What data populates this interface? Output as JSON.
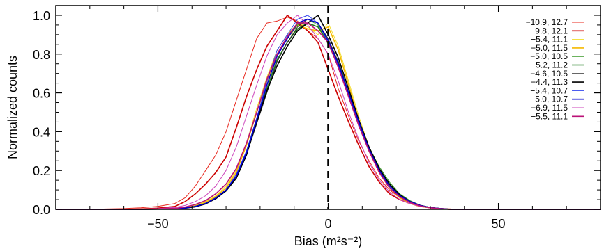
{
  "chart_data": {
    "type": "line",
    "xlabel": "Bias (m²s⁻²)",
    "ylabel": "Normalized counts",
    "xlim": [
      -80,
      80
    ],
    "ylim": [
      0,
      1.05
    ],
    "x_ticks": [
      -50,
      0,
      50
    ],
    "x_tick_labels": [
      "−50",
      "0",
      "50"
    ],
    "y_ticks": [
      0.0,
      0.2,
      0.4,
      0.6,
      0.8,
      1.0
    ],
    "y_tick_labels": [
      "0.0",
      "0.2",
      "0.4",
      "0.6",
      "0.8",
      "1.0"
    ],
    "reference_line": {
      "x": 0,
      "style": "dashed",
      "color": "#000000"
    },
    "legend_position": "top-right",
    "x": [
      -80,
      -75,
      -70,
      -65,
      -60,
      -55,
      -50,
      -45,
      -42,
      -39,
      -36,
      -33,
      -30,
      -27,
      -24,
      -21,
      -18,
      -15,
      -12,
      -9,
      -6,
      -3,
      0,
      3,
      6,
      9,
      12,
      15,
      18,
      21,
      24,
      27,
      30,
      33,
      36,
      40,
      45,
      50,
      60,
      70,
      80
    ],
    "series": [
      {
        "name": "−10.9,  12.7",
        "color": "#e8281e",
        "width": 1.0,
        "values": [
          0,
          0,
          0,
          0.002,
          0.004,
          0.008,
          0.015,
          0.03,
          0.06,
          0.12,
          0.2,
          0.28,
          0.4,
          0.56,
          0.72,
          0.88,
          0.96,
          0.97,
          0.99,
          0.97,
          0.92,
          0.88,
          0.8,
          0.62,
          0.48,
          0.35,
          0.25,
          0.16,
          0.1,
          0.06,
          0.04,
          0.02,
          0.01,
          0.005,
          0.002,
          0,
          0,
          0,
          0,
          0,
          0
        ]
      },
      {
        "name": "−9.8,  12.1",
        "color": "#cc0000",
        "width": 1.6,
        "values": [
          0,
          0,
          0,
          0,
          0,
          0.002,
          0.006,
          0.015,
          0.04,
          0.08,
          0.13,
          0.19,
          0.27,
          0.42,
          0.58,
          0.72,
          0.84,
          0.92,
          1.0,
          0.96,
          0.92,
          0.86,
          0.72,
          0.58,
          0.45,
          0.33,
          0.22,
          0.14,
          0.08,
          0.05,
          0.03,
          0.015,
          0.008,
          0.003,
          0,
          0,
          0,
          0,
          0,
          0,
          0
        ]
      },
      {
        "name": "−5.4,  11.1",
        "color": "#f2dd2a",
        "width": 1.0,
        "values": [
          0,
          0,
          0,
          0,
          0,
          0,
          0.002,
          0.005,
          0.01,
          0.02,
          0.04,
          0.07,
          0.12,
          0.2,
          0.34,
          0.52,
          0.68,
          0.82,
          0.9,
          0.96,
          0.94,
          0.9,
          0.96,
          0.84,
          0.66,
          0.48,
          0.32,
          0.2,
          0.12,
          0.07,
          0.04,
          0.02,
          0.01,
          0.004,
          0,
          0,
          0,
          0,
          0,
          0,
          0
        ]
      },
      {
        "name": "−5.0,  11.5",
        "color": "#f5b800",
        "width": 1.6,
        "values": [
          0,
          0,
          0,
          0,
          0,
          0,
          0.002,
          0.004,
          0.008,
          0.018,
          0.035,
          0.065,
          0.11,
          0.19,
          0.33,
          0.5,
          0.66,
          0.8,
          0.88,
          0.95,
          0.93,
          0.92,
          0.94,
          0.82,
          0.64,
          0.46,
          0.3,
          0.19,
          0.11,
          0.06,
          0.03,
          0.015,
          0.008,
          0.003,
          0,
          0,
          0,
          0,
          0,
          0,
          0
        ]
      },
      {
        "name": "−5.0,  10.5",
        "color": "#3a9a2a",
        "width": 1.0,
        "values": [
          0,
          0,
          0,
          0,
          0,
          0,
          0.001,
          0.003,
          0.007,
          0.015,
          0.03,
          0.06,
          0.1,
          0.17,
          0.3,
          0.47,
          0.64,
          0.79,
          0.88,
          0.95,
          0.98,
          0.95,
          0.85,
          0.74,
          0.59,
          0.44,
          0.32,
          0.22,
          0.14,
          0.08,
          0.045,
          0.022,
          0.01,
          0.004,
          0,
          0,
          0,
          0,
          0,
          0,
          0
        ]
      },
      {
        "name": "−5.2,  11.2",
        "color": "#1f7a1f",
        "width": 1.6,
        "values": [
          0,
          0,
          0,
          0,
          0,
          0,
          0.001,
          0.003,
          0.007,
          0.015,
          0.03,
          0.055,
          0.095,
          0.16,
          0.28,
          0.45,
          0.62,
          0.77,
          0.86,
          0.93,
          0.96,
          0.94,
          0.86,
          0.76,
          0.6,
          0.45,
          0.32,
          0.21,
          0.13,
          0.075,
          0.04,
          0.02,
          0.009,
          0.004,
          0,
          0,
          0,
          0,
          0,
          0,
          0
        ]
      },
      {
        "name": "−4.6,  10.5",
        "color": "#333333",
        "width": 1.0,
        "values": [
          0,
          0,
          0,
          0,
          0,
          0,
          0.001,
          0.002,
          0.006,
          0.013,
          0.028,
          0.055,
          0.095,
          0.16,
          0.28,
          0.44,
          0.6,
          0.76,
          0.86,
          0.94,
          0.98,
          0.96,
          0.88,
          0.76,
          0.6,
          0.45,
          0.32,
          0.21,
          0.13,
          0.075,
          0.04,
          0.02,
          0.009,
          0.004,
          0,
          0,
          0,
          0,
          0,
          0,
          0
        ]
      },
      {
        "name": "−4.4,  11.3",
        "color": "#000000",
        "width": 1.6,
        "values": [
          0,
          0,
          0,
          0,
          0,
          0,
          0.001,
          0.002,
          0.006,
          0.013,
          0.028,
          0.055,
          0.095,
          0.16,
          0.28,
          0.45,
          0.61,
          0.74,
          0.84,
          0.92,
          0.96,
          1.0,
          0.9,
          0.78,
          0.62,
          0.46,
          0.32,
          0.21,
          0.13,
          0.075,
          0.04,
          0.02,
          0.009,
          0.004,
          0,
          0,
          0,
          0,
          0,
          0,
          0
        ]
      },
      {
        "name": "−5.4,  10.7",
        "color": "#3344ee",
        "width": 1.0,
        "values": [
          0,
          0,
          0,
          0,
          0,
          0,
          0.001,
          0.003,
          0.007,
          0.015,
          0.03,
          0.06,
          0.1,
          0.18,
          0.3,
          0.47,
          0.66,
          0.82,
          0.9,
          0.98,
          1.0,
          0.96,
          0.86,
          0.74,
          0.59,
          0.44,
          0.3,
          0.2,
          0.12,
          0.07,
          0.04,
          0.02,
          0.009,
          0.004,
          0,
          0,
          0,
          0,
          0,
          0,
          0
        ]
      },
      {
        "name": "−5.0,  10.7",
        "color": "#0000cc",
        "width": 1.6,
        "values": [
          0,
          0,
          0,
          0,
          0,
          0,
          0.001,
          0.003,
          0.007,
          0.015,
          0.03,
          0.058,
          0.1,
          0.17,
          0.29,
          0.46,
          0.64,
          0.79,
          0.88,
          0.96,
          0.98,
          0.96,
          0.87,
          0.75,
          0.6,
          0.45,
          0.31,
          0.2,
          0.12,
          0.07,
          0.04,
          0.02,
          0.009,
          0.004,
          0,
          0,
          0,
          0,
          0,
          0,
          0
        ]
      },
      {
        "name": "−6.9,  11.5",
        "color": "#cc44bb",
        "width": 1.0,
        "values": [
          0,
          0,
          0,
          0,
          0,
          0.001,
          0.004,
          0.01,
          0.02,
          0.04,
          0.07,
          0.12,
          0.2,
          0.32,
          0.48,
          0.64,
          0.79,
          0.9,
          0.96,
          1.0,
          0.95,
          0.88,
          0.8,
          0.66,
          0.5,
          0.36,
          0.24,
          0.15,
          0.09,
          0.05,
          0.03,
          0.015,
          0.007,
          0.003,
          0,
          0,
          0,
          0,
          0,
          0,
          0
        ]
      },
      {
        "name": "−5.5,  11.1",
        "color": "#bb1177",
        "width": 1.6,
        "values": [
          0,
          0,
          0,
          0,
          0,
          0,
          0.002,
          0.005,
          0.012,
          0.025,
          0.045,
          0.08,
          0.13,
          0.21,
          0.34,
          0.5,
          0.67,
          0.8,
          0.89,
          0.96,
          0.96,
          0.92,
          0.86,
          0.73,
          0.58,
          0.43,
          0.3,
          0.19,
          0.11,
          0.065,
          0.035,
          0.018,
          0.008,
          0.003,
          0,
          0,
          0,
          0,
          0,
          0,
          0
        ]
      }
    ]
  }
}
